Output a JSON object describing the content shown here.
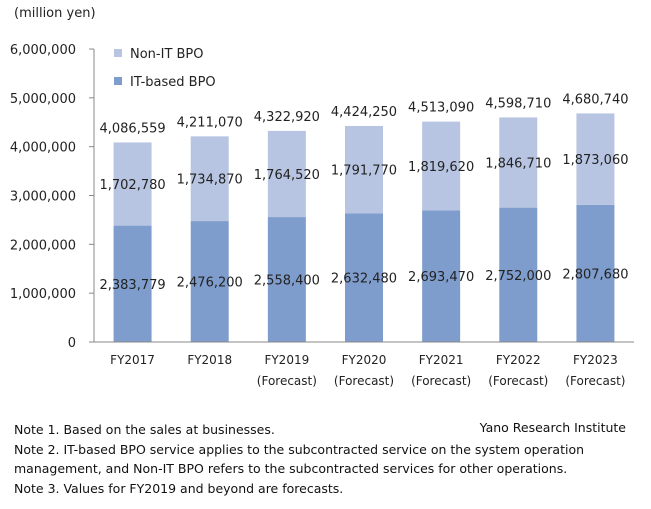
{
  "chart_data": {
    "type": "bar",
    "stacked": true,
    "unit_label": "(million yen)",
    "categories": [
      "FY2017",
      "FY2018",
      "FY2019",
      "FY2020",
      "FY2021",
      "FY2022",
      "FY2023"
    ],
    "category_sublabels": [
      "",
      "",
      "(Forecast)",
      "(Forecast)",
      "(Forecast)",
      "(Forecast)",
      "(Forecast)"
    ],
    "series": [
      {
        "name": "IT-based BPO",
        "color": "#7f9dcc",
        "values": [
          2383779,
          2476200,
          2558400,
          2632480,
          2693470,
          2752000,
          2807680
        ],
        "labels": [
          "2,383,779",
          "2,476,200",
          "2,558,400",
          "2,632,480",
          "2,693,470",
          "2,752,000",
          "2,807,680"
        ]
      },
      {
        "name": "Non-IT BPO",
        "color": "#b7c5e2",
        "values": [
          1702780,
          1734870,
          1764520,
          1791770,
          1819620,
          1846710,
          1873060
        ],
        "labels": [
          "1,702,780",
          "1,734,870",
          "1,764,520",
          "1,791,770",
          "1,819,620",
          "1,846,710",
          "1,873,060"
        ]
      }
    ],
    "totals": [
      4086559,
      4211070,
      4322920,
      4424250,
      4513090,
      4598710,
      4680740
    ],
    "total_labels": [
      "4,086,559",
      "4,211,070",
      "4,322,920",
      "4,424,250",
      "4,513,090",
      "4,598,710",
      "4,680,740"
    ],
    "ylim": [
      0,
      6000000
    ],
    "yticks": [
      0,
      1000000,
      2000000,
      3000000,
      4000000,
      5000000,
      6000000
    ],
    "ytick_labels": [
      "0",
      "1,000,000",
      "2,000,000",
      "3,000,000",
      "4,000,000",
      "5,000,000",
      "6,000,000"
    ],
    "legend_order": [
      "Non-IT BPO",
      "IT-based BPO"
    ],
    "legend_position": "top-left"
  },
  "source": "Yano Research Institute",
  "notes": [
    "Note 1. Based on the sales at businesses.",
    "Note 2. IT-based BPO service applies to the subcontracted service on the system operation",
    "management, and Non-IT BPO refers to the subcontracted services for other operations.",
    "Note 3. Values for FY2019 and beyond are forecasts."
  ]
}
